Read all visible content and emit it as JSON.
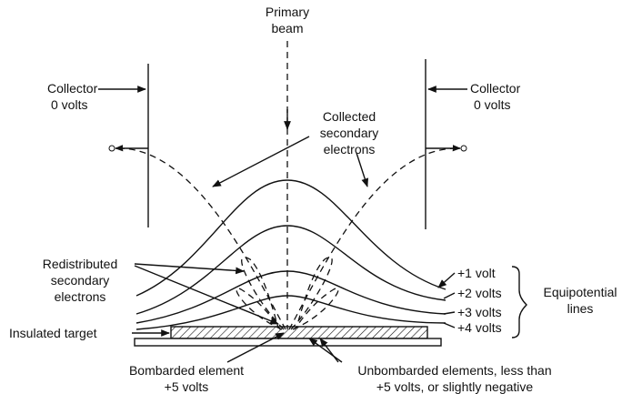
{
  "labels": {
    "primary_beam": [
      "Primary",
      "beam"
    ],
    "collector_left": [
      "Collector",
      "0 volts"
    ],
    "collector_right": [
      "Collector",
      "0 volts"
    ],
    "collected": [
      "Collected",
      "secondary",
      "electrons"
    ],
    "redistributed": [
      "Redistributed",
      "secondary",
      "electrons"
    ],
    "equipotential": [
      "Equipotential",
      "lines"
    ],
    "insulated_target": [
      "Insulated target"
    ],
    "bombarded": [
      "Bombarded element",
      "+5 volts"
    ],
    "unbombarded": [
      "Unbombarded elements, less than",
      "+5 volts, or slightly negative"
    ]
  },
  "equipotentials": [
    "+1 volt",
    "+2 volts",
    "+3 volts",
    "+4 volts"
  ]
}
